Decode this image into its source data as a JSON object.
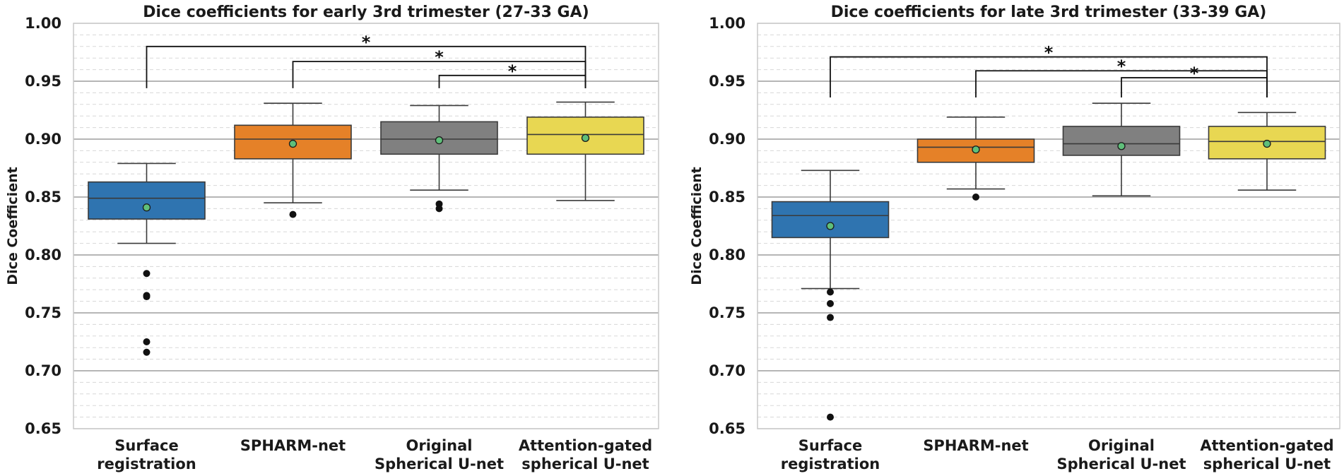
{
  "chart_data": [
    {
      "type": "box",
      "title": "Dice coefficients for early 3rd trimester (27-33 GA)",
      "xlabel": "",
      "ylabel": "Dice Coefficient",
      "ylim": [
        0.65,
        1.0
      ],
      "yticks": [
        "0.65",
        "0.70",
        "0.75",
        "0.80",
        "0.85",
        "0.90",
        "0.95",
        "1.00"
      ],
      "grid": true,
      "categories": [
        [
          "Surface",
          "registration"
        ],
        [
          "SPHARM-net"
        ],
        [
          "Original",
          "Spherical U-net"
        ],
        [
          "Attention-gated",
          "spherical U-net"
        ]
      ],
      "boxes": [
        {
          "color": "#2f74b0",
          "q1": 0.831,
          "median": 0.849,
          "q3": 0.863,
          "whisker_low": 0.81,
          "whisker_high": 0.879,
          "mean": 0.841,
          "outliers": [
            0.784,
            0.765,
            0.764,
            0.725,
            0.716
          ]
        },
        {
          "color": "#e58128",
          "q1": 0.883,
          "median": 0.9,
          "q3": 0.912,
          "whisker_low": 0.845,
          "whisker_high": 0.931,
          "mean": 0.896,
          "outliers": [
            0.835
          ]
        },
        {
          "color": "#808080",
          "q1": 0.887,
          "median": 0.9,
          "q3": 0.915,
          "whisker_low": 0.856,
          "whisker_high": 0.929,
          "mean": 0.899,
          "outliers": [
            0.844,
            0.84
          ]
        },
        {
          "color": "#e8d752",
          "q1": 0.887,
          "median": 0.904,
          "q3": 0.919,
          "whisker_low": 0.847,
          "whisker_high": 0.932,
          "mean": 0.901,
          "outliers": []
        }
      ],
      "significance": [
        {
          "from": 0,
          "to": 3,
          "bar": 0.98,
          "left_end": 0.944,
          "right_end": 0.944,
          "label": "*"
        },
        {
          "from": 1,
          "to": 3,
          "bar": 0.967,
          "left_end": 0.944,
          "right_end": 0.944,
          "label": "*"
        },
        {
          "from": 2,
          "to": 3,
          "bar": 0.955,
          "left_end": 0.944,
          "right_end": 0.944,
          "label": "*"
        }
      ]
    },
    {
      "type": "box",
      "title": "Dice coefficients for late 3rd trimester (33-39 GA)",
      "xlabel": "",
      "ylabel": "Dice Coefficient",
      "ylim": [
        0.65,
        1.0
      ],
      "yticks": [
        "0.65",
        "0.70",
        "0.75",
        "0.80",
        "0.85",
        "0.90",
        "0.95",
        "1.00"
      ],
      "grid": true,
      "categories": [
        [
          "Surface",
          "registration"
        ],
        [
          "SPHARM-net"
        ],
        [
          "Original",
          "Spherical U-net"
        ],
        [
          "Attention-gated",
          "spherical U-net"
        ]
      ],
      "boxes": [
        {
          "color": "#2f74b0",
          "q1": 0.815,
          "median": 0.834,
          "q3": 0.846,
          "whisker_low": 0.771,
          "whisker_high": 0.873,
          "mean": 0.825,
          "outliers": [
            0.768,
            0.758,
            0.746,
            0.66
          ]
        },
        {
          "color": "#e58128",
          "q1": 0.88,
          "median": 0.893,
          "q3": 0.9,
          "whisker_low": 0.857,
          "whisker_high": 0.919,
          "mean": 0.891,
          "outliers": [
            0.85
          ]
        },
        {
          "color": "#808080",
          "q1": 0.886,
          "median": 0.896,
          "q3": 0.911,
          "whisker_low": 0.851,
          "whisker_high": 0.931,
          "mean": 0.894,
          "outliers": []
        },
        {
          "color": "#e8d752",
          "q1": 0.883,
          "median": 0.898,
          "q3": 0.911,
          "whisker_low": 0.856,
          "whisker_high": 0.923,
          "mean": 0.896,
          "outliers": []
        }
      ],
      "significance": [
        {
          "from": 0,
          "to": 3,
          "bar": 0.971,
          "left_end": 0.936,
          "right_end": 0.936,
          "label": "*"
        },
        {
          "from": 1,
          "to": 3,
          "bar": 0.959,
          "left_end": 0.936,
          "right_end": 0.936,
          "label": "*"
        },
        {
          "from": 2,
          "to": 3,
          "bar": 0.953,
          "left_end": 0.936,
          "right_end": 0.936,
          "label": "*"
        }
      ]
    }
  ]
}
